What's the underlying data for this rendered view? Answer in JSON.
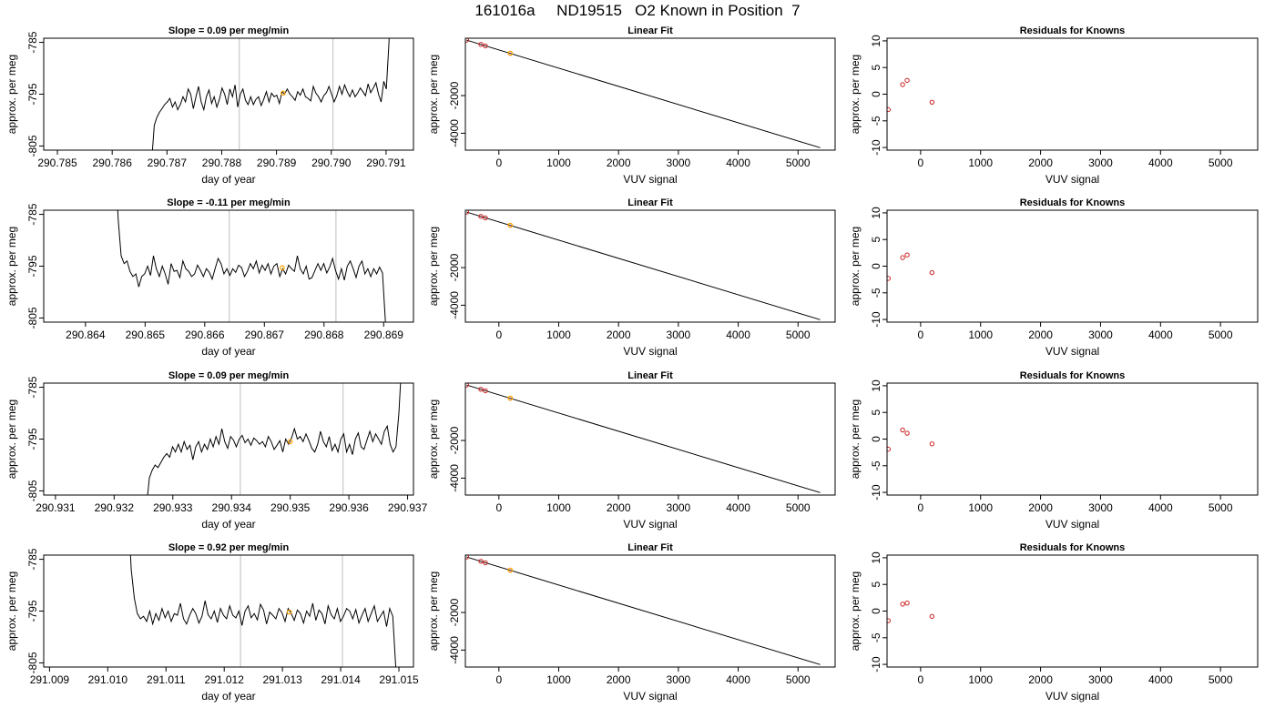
{
  "page": {
    "title": "161016a     ND19515   O2 Known in Position  7"
  },
  "chart_data": [
    {
      "type": "line",
      "title": "Slope =  0.09  per meg/min",
      "xlabel": "day of year",
      "ylabel": "approx. per meg",
      "xlim": [
        290.78475,
        290.7915
      ],
      "ylim": [
        -805.8,
        -784.2
      ],
      "xticks": [
        "290.785",
        "290.786",
        "290.787",
        "290.788",
        "290.789",
        "290.790",
        "290.791"
      ],
      "yticks": [
        "-805",
        "-795",
        "-785"
      ],
      "vlines": [
        290.78832,
        290.79003
      ],
      "marker": {
        "x": 290.78912,
        "y": -794.8
      },
      "series": [
        {
          "x_start": 290.78672,
          "x_end": 290.7911,
          "values": [
            -808,
            -801,
            -799.5,
            -798.5,
            -797.8,
            -797,
            -796.5,
            -795.8,
            -797.5,
            -796.5,
            -798,
            -797,
            -795.5,
            -796.5,
            -794,
            -795,
            -797.8,
            -795.5,
            -793.5,
            -796.5,
            -798,
            -795.5,
            -794.2,
            -796.8,
            -795.5,
            -797.5,
            -796,
            -793.8,
            -795,
            -797,
            -794,
            -795.5,
            -793.2,
            -797.5,
            -795,
            -794,
            -796.2,
            -797,
            -795.5,
            -797,
            -796,
            -795.5,
            -797.2,
            -796,
            -794.5,
            -796.5,
            -794.8,
            -795.5,
            -795.2,
            -796.8,
            -794.5,
            -795,
            -794,
            -795,
            -795.5,
            -796.2,
            -794.5,
            -795.2,
            -794,
            -795.5,
            -795.8,
            -796.3,
            -793.5,
            -794.8,
            -795.5,
            -796.5,
            -795.3,
            -794.7,
            -793.5,
            -795,
            -796.5,
            -795.3,
            -793.5,
            -795,
            -793.2,
            -794.5,
            -795.5,
            -794.2,
            -795.5,
            -794.8,
            -793.8,
            -794.5,
            -795.3,
            -793,
            -794.7,
            -793.8,
            -792.8,
            -795,
            -796.5,
            -792.5,
            -794,
            -785,
            -770
          ]
        }
      ]
    },
    {
      "type": "line",
      "title": "Linear Fit",
      "xlabel": "VUV signal",
      "ylabel": "approx. per meg",
      "xlim": [
        -560,
        5620
      ],
      "ylim": [
        -4900,
        1050
      ],
      "xticks": [
        "0",
        "1000",
        "2000",
        "3000",
        "4000",
        "5000"
      ],
      "yticks": [
        "-4000",
        "-2000"
      ],
      "fit_line": [
        [
          -540,
          950
        ],
        [
          5370,
          -4770
        ]
      ],
      "points": [
        {
          "x": -540,
          "y": 951
        },
        {
          "x": -300,
          "y": 720
        },
        {
          "x": -225,
          "y": 640
        },
        {
          "x": 190,
          "y": 250
        }
      ],
      "highlight_point": {
        "x": 190,
        "y": 250
      }
    },
    {
      "type": "scatter",
      "title": "Residuals for Knowns",
      "xlabel": "VUV signal",
      "ylabel": "approx. per meg",
      "xlim": [
        -560,
        5620
      ],
      "ylim": [
        -10.5,
        10.5
      ],
      "xticks": [
        "0",
        "1000",
        "2000",
        "3000",
        "4000",
        "5000"
      ],
      "yticks": [
        "-10",
        "-5",
        "0",
        "5",
        "10"
      ],
      "points": [
        {
          "x": -540,
          "y": -2.9
        },
        {
          "x": -300,
          "y": 1.8
        },
        {
          "x": -225,
          "y": 2.6
        },
        {
          "x": 190,
          "y": -1.5
        }
      ]
    },
    {
      "type": "line",
      "title": "Slope =  -0.11  per meg/min",
      "xlabel": "day of year",
      "ylabel": "approx. per meg",
      "xlim": [
        290.8633,
        290.8695
      ],
      "ylim": [
        -805.8,
        -784.2
      ],
      "xticks": [
        "290.864",
        "290.865",
        "290.866",
        "290.867",
        "290.868",
        "290.869"
      ],
      "yticks": [
        "-805",
        "-795",
        "-785"
      ],
      "vlines": [
        290.86641,
        290.8682
      ],
      "marker": {
        "x": 290.8673,
        "y": -795.3
      },
      "series": [
        {
          "x_start": 290.8645,
          "x_end": 290.86908,
          "values": [
            -775,
            -786,
            -793,
            -794.5,
            -794,
            -796,
            -797,
            -796.5,
            -799,
            -797,
            -796.5,
            -795,
            -796.8,
            -793,
            -795.5,
            -797,
            -795,
            -796.5,
            -798.5,
            -794.5,
            -796,
            -795.8,
            -797.2,
            -794,
            -795.5,
            -796,
            -797,
            -796.5,
            -794.8,
            -795.8,
            -797,
            -795.5,
            -796.2,
            -797.5,
            -795.5,
            -793.5,
            -794.5,
            -796.5,
            -795.5,
            -796.8,
            -795.5,
            -796.2,
            -794.8,
            -795.3,
            -797,
            -796,
            -794.5,
            -795.5,
            -794,
            -796.3,
            -794.8,
            -795.8,
            -794.5,
            -796.5,
            -795,
            -794.5,
            -797,
            -795.5,
            -796.5,
            -794.8,
            -795.5,
            -796,
            -793,
            -795.5,
            -796.5,
            -795,
            -797.5,
            -797.2,
            -795.8,
            -794.5,
            -795.8,
            -794.5,
            -796.3,
            -795.2,
            -793.5,
            -795.8,
            -797.5,
            -795.5,
            -797.7,
            -795,
            -794,
            -795.5,
            -797.2,
            -795,
            -794,
            -796.5,
            -795.5,
            -797,
            -795.5,
            -796.5,
            -795.2,
            -796.3,
            -806,
            -812
          ]
        }
      ]
    },
    {
      "type": "line",
      "title": "Linear Fit",
      "xlabel": "VUV signal",
      "ylabel": "approx. per meg",
      "xlim": [
        -560,
        5620
      ],
      "ylim": [
        -4900,
        1050
      ],
      "xticks": [
        "0",
        "1000",
        "2000",
        "3000",
        "4000",
        "5000"
      ],
      "yticks": [
        "-4000",
        "-2000"
      ],
      "fit_line": [
        [
          -540,
          950
        ],
        [
          5370,
          -4770
        ]
      ],
      "points": [
        {
          "x": -540,
          "y": 951
        },
        {
          "x": -300,
          "y": 720
        },
        {
          "x": -225,
          "y": 640
        },
        {
          "x": 190,
          "y": 250
        }
      ],
      "highlight_point": {
        "x": 190,
        "y": 250
      }
    },
    {
      "type": "scatter",
      "title": "Residuals for Knowns",
      "xlabel": "VUV signal",
      "ylabel": "approx. per meg",
      "xlim": [
        -560,
        5620
      ],
      "ylim": [
        -10.5,
        10.5
      ],
      "xticks": [
        "0",
        "1000",
        "2000",
        "3000",
        "4000",
        "5000"
      ],
      "yticks": [
        "-10",
        "-5",
        "0",
        "5",
        "10"
      ],
      "points": [
        {
          "x": -540,
          "y": -2.3
        },
        {
          "x": -300,
          "y": 1.6
        },
        {
          "x": -225,
          "y": 2.1
        },
        {
          "x": 190,
          "y": -1.2
        }
      ]
    },
    {
      "type": "line",
      "title": "Slope =  0.09  per meg/min",
      "xlabel": "day of year",
      "ylabel": "approx. per meg",
      "xlim": [
        290.9308,
        290.9371
      ],
      "ylim": [
        -805.8,
        -784.2
      ],
      "xticks": [
        "290.931",
        "290.932",
        "290.933",
        "290.934",
        "290.935",
        "290.936",
        "290.937"
      ],
      "yticks": [
        "-805",
        "-795",
        "-785"
      ],
      "vlines": [
        290.93415,
        290.9359
      ],
      "marker": {
        "x": 290.935,
        "y": -795.5
      },
      "series": [
        {
          "x_start": 290.93255,
          "x_end": 290.93695,
          "values": [
            -808,
            -802.5,
            -801,
            -800,
            -800.5,
            -799.5,
            -798.5,
            -797.8,
            -798.5,
            -796.5,
            -797.5,
            -796,
            -797.5,
            -795.5,
            -797,
            -796.2,
            -799,
            -796.5,
            -795.5,
            -797.5,
            -796,
            -797,
            -795,
            -796.5,
            -794.5,
            -796,
            -793,
            -795.5,
            -796.8,
            -794.5,
            -795.2,
            -796.5,
            -795,
            -794.3,
            -795.7,
            -795,
            -796.2,
            -794.8,
            -795.3,
            -796,
            -795.5,
            -796.5,
            -794.5,
            -795.5,
            -797,
            -796.2,
            -795.3,
            -797.5,
            -795,
            -796,
            -794.8,
            -793,
            -795,
            -794.5,
            -795.5,
            -794,
            -795.3,
            -796.8,
            -797.5,
            -796,
            -793.5,
            -795.5,
            -796.5,
            -794.5,
            -797.2,
            -796,
            -797.5,
            -795,
            -794,
            -797.5,
            -796,
            -798,
            -795,
            -793.8,
            -796.5,
            -797,
            -795.2,
            -793.5,
            -795.5,
            -794,
            -795,
            -796,
            -793.5,
            -792.5,
            -796,
            -797.5,
            -796.5,
            -790,
            -780,
            -770
          ]
        }
      ]
    },
    {
      "type": "line",
      "title": "Linear Fit",
      "xlabel": "VUV signal",
      "ylabel": "approx. per meg",
      "xlim": [
        -560,
        5620
      ],
      "ylim": [
        -4900,
        1050
      ],
      "xticks": [
        "0",
        "1000",
        "2000",
        "3000",
        "4000",
        "5000"
      ],
      "yticks": [
        "-4000",
        "-2000"
      ],
      "fit_line": [
        [
          -540,
          950
        ],
        [
          5370,
          -4770
        ]
      ],
      "points": [
        {
          "x": -540,
          "y": 951
        },
        {
          "x": -300,
          "y": 720
        },
        {
          "x": -225,
          "y": 640
        },
        {
          "x": 190,
          "y": 250
        }
      ],
      "highlight_point": {
        "x": 190,
        "y": 250
      }
    },
    {
      "type": "scatter",
      "title": "Residuals for Knowns",
      "xlabel": "VUV signal",
      "ylabel": "approx. per meg",
      "xlim": [
        -560,
        5620
      ],
      "ylim": [
        -10.5,
        10.5
      ],
      "xticks": [
        "0",
        "1000",
        "2000",
        "3000",
        "4000",
        "5000"
      ],
      "yticks": [
        "-10",
        "-5",
        "0",
        "5",
        "10"
      ],
      "points": [
        {
          "x": -540,
          "y": -1.9
        },
        {
          "x": -300,
          "y": 1.7
        },
        {
          "x": -225,
          "y": 1.1
        },
        {
          "x": 190,
          "y": -0.9
        }
      ]
    },
    {
      "type": "line",
      "title": "Slope =  0.92  per meg/min",
      "xlabel": "day of year",
      "ylabel": "approx. per meg",
      "xlim": [
        291.0089,
        291.01525
      ],
      "ylim": [
        -805.8,
        -784.2
      ],
      "xticks": [
        "291.009",
        "291.010",
        "291.011",
        "291.012",
        "291.013",
        "291.014",
        "291.015"
      ],
      "yticks": [
        "-805",
        "-795",
        "-785"
      ],
      "vlines": [
        291.01228,
        291.01403
      ],
      "marker": {
        "x": 291.01312,
        "y": -795.2
      },
      "series": [
        {
          "x_start": 291.01035,
          "x_end": 291.015,
          "values": [
            -775,
            -787,
            -792.5,
            -795.5,
            -796.5,
            -796,
            -797,
            -795,
            -797.5,
            -795.5,
            -796.8,
            -794.5,
            -796.3,
            -795,
            -797,
            -795.5,
            -795.8,
            -793.5,
            -796.5,
            -797.5,
            -795.8,
            -794.5,
            -795.5,
            -797.3,
            -796,
            -793,
            -795.7,
            -796.5,
            -795,
            -797.2,
            -794.5,
            -795.8,
            -796.5,
            -794,
            -795.8,
            -796.3,
            -795,
            -797.8,
            -795,
            -794,
            -796.3,
            -795.5,
            -796.7,
            -793.7,
            -794.8,
            -797.5,
            -795.2,
            -795.8,
            -796.5,
            -794.5,
            -795.3,
            -797,
            -794.5,
            -795.5,
            -796.8,
            -794.8,
            -795.5,
            -797.3,
            -795,
            -796,
            -793.5,
            -796.8,
            -794.8,
            -795.5,
            -797.5,
            -794,
            -795.7,
            -796.5,
            -794.5,
            -797,
            -796,
            -794.5,
            -795,
            -796.5,
            -794.7,
            -797.3,
            -795.8,
            -794.5,
            -797,
            -795.5,
            -794,
            -797,
            -796,
            -795,
            -798,
            -794.5,
            -796,
            -806,
            -812
          ]
        }
      ]
    },
    {
      "type": "line",
      "title": "Linear Fit",
      "xlabel": "VUV signal",
      "ylabel": "approx. per meg",
      "xlim": [
        -560,
        5620
      ],
      "ylim": [
        -4900,
        1050
      ],
      "xticks": [
        "0",
        "1000",
        "2000",
        "3000",
        "4000",
        "5000"
      ],
      "yticks": [
        "-4000",
        "-2000"
      ],
      "fit_line": [
        [
          -540,
          950
        ],
        [
          5370,
          -4770
        ]
      ],
      "points": [
        {
          "x": -540,
          "y": 951
        },
        {
          "x": -300,
          "y": 720
        },
        {
          "x": -225,
          "y": 640
        },
        {
          "x": 190,
          "y": 250
        }
      ],
      "highlight_point": {
        "x": 190,
        "y": 250
      }
    },
    {
      "type": "scatter",
      "title": "Residuals for Knowns",
      "xlabel": "VUV signal",
      "ylabel": "approx. per meg",
      "xlim": [
        -560,
        5620
      ],
      "ylim": [
        -10.5,
        10.5
      ],
      "xticks": [
        "0",
        "1000",
        "2000",
        "3000",
        "4000",
        "5000"
      ],
      "yticks": [
        "-10",
        "-5",
        "0",
        "5",
        "10"
      ],
      "points": [
        {
          "x": -540,
          "y": -1.8
        },
        {
          "x": -300,
          "y": 1.3
        },
        {
          "x": -225,
          "y": 1.5
        },
        {
          "x": 190,
          "y": -1.0
        }
      ]
    }
  ]
}
